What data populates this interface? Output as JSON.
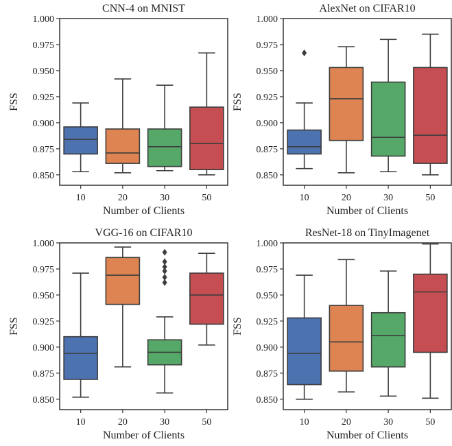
{
  "colors": [
    "#4c72b0",
    "#dd8452",
    "#55a868",
    "#c44e52"
  ],
  "chart_data": [
    {
      "type": "box",
      "title": "CNN-4 on MNIST",
      "xlabel": "Number of Clients",
      "ylabel": "FSS",
      "categories": [
        "10",
        "20",
        "30",
        "50"
      ],
      "ylim": [
        0.84,
        1.0
      ],
      "yticks": [
        "0.850",
        "0.875",
        "0.900",
        "0.925",
        "0.950",
        "0.975",
        "1.000"
      ],
      "boxes": [
        {
          "min": 0.853,
          "q1": 0.87,
          "median": 0.884,
          "q3": 0.896,
          "max": 0.919,
          "fliers": []
        },
        {
          "min": 0.852,
          "q1": 0.861,
          "median": 0.871,
          "q3": 0.894,
          "max": 0.942,
          "fliers": []
        },
        {
          "min": 0.854,
          "q1": 0.858,
          "median": 0.877,
          "q3": 0.894,
          "max": 0.936,
          "fliers": []
        },
        {
          "min": 0.85,
          "q1": 0.855,
          "median": 0.88,
          "q3": 0.915,
          "max": 0.967,
          "fliers": []
        }
      ]
    },
    {
      "type": "box",
      "title": "AlexNet on CIFAR10",
      "xlabel": "Number of Clients",
      "ylabel": "FSS",
      "categories": [
        "10",
        "20",
        "30",
        "50"
      ],
      "ylim": [
        0.84,
        1.0
      ],
      "yticks": [
        "0.850",
        "0.875",
        "0.900",
        "0.925",
        "0.950",
        "0.975",
        "1.000"
      ],
      "boxes": [
        {
          "min": 0.856,
          "q1": 0.87,
          "median": 0.877,
          "q3": 0.893,
          "max": 0.919,
          "fliers": [
            0.967
          ]
        },
        {
          "min": 0.852,
          "q1": 0.883,
          "median": 0.923,
          "q3": 0.953,
          "max": 0.973,
          "fliers": []
        },
        {
          "min": 0.853,
          "q1": 0.868,
          "median": 0.886,
          "q3": 0.939,
          "max": 0.98,
          "fliers": []
        },
        {
          "min": 0.85,
          "q1": 0.861,
          "median": 0.888,
          "q3": 0.953,
          "max": 0.985,
          "fliers": []
        }
      ]
    },
    {
      "type": "box",
      "title": "VGG-16 on CIFAR10",
      "xlabel": "Number of Clients",
      "ylabel": "FSS",
      "categories": [
        "10",
        "20",
        "30",
        "50"
      ],
      "ylim": [
        0.84,
        1.0
      ],
      "yticks": [
        "0.850",
        "0.875",
        "0.900",
        "0.925",
        "0.950",
        "0.975",
        "1.000"
      ],
      "boxes": [
        {
          "min": 0.852,
          "q1": 0.869,
          "median": 0.894,
          "q3": 0.91,
          "max": 0.971,
          "fliers": []
        },
        {
          "min": 0.881,
          "q1": 0.941,
          "median": 0.969,
          "q3": 0.986,
          "max": 0.996,
          "fliers": []
        },
        {
          "min": 0.856,
          "q1": 0.883,
          "median": 0.895,
          "q3": 0.907,
          "max": 0.929,
          "fliers": [
            0.962,
            0.967,
            0.973,
            0.977,
            0.982,
            0.991
          ]
        },
        {
          "min": 0.902,
          "q1": 0.922,
          "median": 0.95,
          "q3": 0.971,
          "max": 0.99,
          "fliers": []
        }
      ]
    },
    {
      "type": "box",
      "title": "ResNet-18 on TinyImagenet",
      "xlabel": "Number of Clients",
      "ylabel": "FSS",
      "categories": [
        "10",
        "20",
        "30",
        "50"
      ],
      "ylim": [
        0.84,
        1.0
      ],
      "yticks": [
        "0.850",
        "0.875",
        "0.900",
        "0.925",
        "0.950",
        "0.975",
        "1.000"
      ],
      "boxes": [
        {
          "min": 0.85,
          "q1": 0.864,
          "median": 0.894,
          "q3": 0.928,
          "max": 0.969,
          "fliers": []
        },
        {
          "min": 0.857,
          "q1": 0.877,
          "median": 0.905,
          "q3": 0.94,
          "max": 0.984,
          "fliers": []
        },
        {
          "min": 0.853,
          "q1": 0.881,
          "median": 0.911,
          "q3": 0.933,
          "max": 0.973,
          "fliers": []
        },
        {
          "min": 0.851,
          "q1": 0.895,
          "median": 0.953,
          "q3": 0.97,
          "max": 0.999,
          "fliers": []
        }
      ]
    }
  ]
}
